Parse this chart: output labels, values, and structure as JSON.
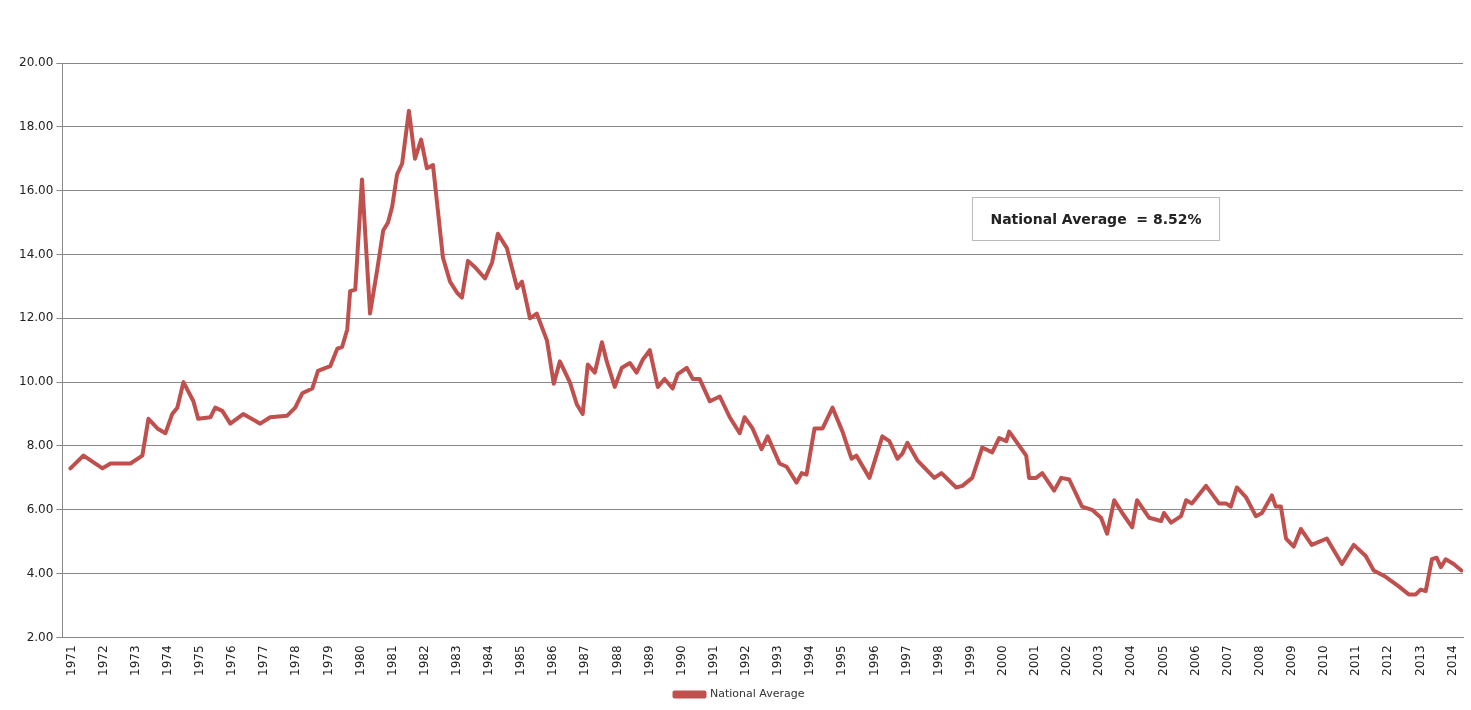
{
  "chart_data": {
    "type": "line",
    "annotations": [
      "National Average  = 8.52%"
    ],
    "x": [
      1971.09,
      1971.5,
      1972.09,
      1972.34,
      1972.96,
      1973.33,
      1973.52,
      1973.8,
      1974.05,
      1974.26,
      1974.42,
      1974.61,
      1974.92,
      1975.07,
      1975.45,
      1975.6,
      1975.82,
      1976.07,
      1976.47,
      1977.0,
      1977.31,
      1977.84,
      1978.09,
      1978.31,
      1978.62,
      1978.8,
      1979.18,
      1979.4,
      1979.55,
      1979.71,
      1979.8,
      1979.96,
      1980.17,
      1980.42,
      1980.64,
      1980.83,
      1980.98,
      1981.11,
      1981.26,
      1981.42,
      1981.63,
      1981.82,
      1982.01,
      1982.19,
      1982.38,
      1982.69,
      1982.91,
      1983.13,
      1983.28,
      1983.47,
      1983.69,
      1984.0,
      1984.22,
      1984.4,
      1984.68,
      1985.0,
      1985.15,
      1985.4,
      1985.61,
      1985.93,
      1986.14,
      1986.33,
      1986.64,
      1986.86,
      1987.04,
      1987.2,
      1987.42,
      1987.64,
      1987.79,
      1988.04,
      1988.26,
      1988.51,
      1988.72,
      1988.91,
      1989.13,
      1989.38,
      1989.59,
      1989.84,
      1990.0,
      1990.28,
      1990.47,
      1990.68,
      1991.0,
      1991.31,
      1991.62,
      1991.93,
      1992.08,
      1992.33,
      1992.61,
      1992.8,
      1993.17,
      1993.39,
      1993.7,
      1993.86,
      1994.01,
      1994.26,
      1994.51,
      1994.82,
      1995.13,
      1995.41,
      1995.56,
      1995.97,
      1996.37,
      1996.59,
      1996.84,
      1996.99,
      1997.15,
      1997.46,
      1997.99,
      1998.21,
      1998.67,
      1998.86,
      1999.17,
      1999.48,
      1999.79,
      2000.01,
      2000.23,
      2000.32,
      2000.85,
      2000.94,
      2001.16,
      2001.35,
      2001.72,
      2001.94,
      2002.19,
      2002.59,
      2002.9,
      2003.18,
      2003.37,
      2003.59,
      2003.84,
      2004.15,
      2004.3,
      2004.68,
      2005.05,
      2005.14,
      2005.36,
      2005.67,
      2005.83,
      2006.01,
      2006.45,
      2006.85,
      2007.07,
      2007.22,
      2007.41,
      2007.69,
      2008.0,
      2008.19,
      2008.5,
      2008.62,
      2008.78,
      2008.94,
      2009.18,
      2009.4,
      2009.74,
      2010.21,
      2010.68,
      2011.05,
      2011.42,
      2011.67,
      2012.04,
      2012.45,
      2012.76,
      2012.98,
      2013.13,
      2013.29,
      2013.48,
      2013.63,
      2013.76,
      2013.91,
      2014.16,
      2014.4
    ],
    "series": [
      {
        "name": "National Average",
        "color": "#c0504d",
        "values": [
          7.3,
          7.7,
          7.3,
          7.45,
          7.45,
          7.7,
          8.85,
          8.55,
          8.4,
          9.0,
          9.2,
          10.0,
          9.4,
          8.85,
          8.9,
          9.2,
          9.1,
          8.7,
          9.0,
          8.7,
          8.9,
          8.95,
          9.2,
          9.65,
          9.8,
          10.35,
          10.5,
          11.05,
          11.1,
          11.65,
          12.85,
          12.9,
          16.35,
          12.15,
          13.5,
          14.75,
          15.0,
          15.5,
          16.5,
          16.85,
          18.5,
          17.0,
          17.6,
          16.7,
          16.8,
          13.9,
          13.15,
          12.8,
          12.65,
          13.8,
          13.6,
          13.25,
          13.75,
          14.65,
          14.2,
          12.95,
          13.15,
          12.0,
          12.15,
          11.3,
          9.95,
          10.65,
          10.0,
          9.3,
          9.0,
          10.55,
          10.3,
          11.25,
          10.65,
          9.85,
          10.45,
          10.6,
          10.3,
          10.7,
          11.0,
          9.85,
          10.1,
          9.8,
          10.25,
          10.45,
          10.1,
          10.1,
          9.4,
          9.55,
          8.9,
          8.4,
          8.9,
          8.55,
          7.9,
          8.3,
          7.45,
          7.35,
          6.85,
          7.15,
          7.1,
          8.55,
          8.55,
          9.2,
          8.45,
          7.6,
          7.7,
          7.0,
          8.3,
          8.15,
          7.6,
          7.75,
          8.1,
          7.55,
          7.0,
          7.15,
          6.7,
          6.75,
          7.0,
          7.95,
          7.8,
          8.25,
          8.15,
          8.45,
          7.7,
          7.0,
          7.0,
          7.15,
          6.6,
          7.0,
          6.95,
          6.1,
          6.0,
          5.75,
          5.25,
          6.3,
          5.9,
          5.45,
          6.3,
          5.75,
          5.65,
          5.9,
          5.6,
          5.8,
          6.3,
          6.2,
          6.75,
          6.2,
          6.2,
          6.1,
          6.7,
          6.4,
          5.8,
          5.9,
          6.45,
          6.1,
          6.1,
          5.1,
          4.85,
          5.4,
          4.9,
          5.1,
          4.3,
          4.9,
          4.55,
          4.1,
          3.9,
          3.6,
          3.35,
          3.35,
          3.5,
          3.45,
          4.45,
          4.5,
          4.2,
          4.45,
          4.3,
          4.1
        ]
      }
    ],
    "xlim": [
      1970.84,
      2014.45
    ],
    "xticks": [
      1971,
      1972,
      1973,
      1974,
      1975,
      1976,
      1977,
      1978,
      1979,
      1980,
      1981,
      1982,
      1983,
      1984,
      1985,
      1986,
      1987,
      1988,
      1989,
      1990,
      1991,
      1992,
      1993,
      1994,
      1995,
      1996,
      1997,
      1998,
      1999,
      2000,
      2001,
      2002,
      2003,
      2004,
      2005,
      2006,
      2007,
      2008,
      2009,
      2010,
      2011,
      2012,
      2013,
      2014
    ],
    "ylim": [
      2,
      20
    ],
    "yticks": [
      {
        "value": 2,
        "label": "2.00"
      },
      {
        "value": 4,
        "label": "4.00"
      },
      {
        "value": 6,
        "label": "6.00"
      },
      {
        "value": 8,
        "label": "8.00"
      },
      {
        "value": 10,
        "label": "10.00"
      },
      {
        "value": 12,
        "label": "12.00"
      },
      {
        "value": 14,
        "label": "14.00"
      },
      {
        "value": 16,
        "label": "16.00"
      },
      {
        "value": 18,
        "label": "18.00"
      },
      {
        "value": 20,
        "label": "20.00"
      }
    ],
    "grid": "y",
    "legend": "bottom",
    "marker": "none",
    "line_style": "solid"
  }
}
